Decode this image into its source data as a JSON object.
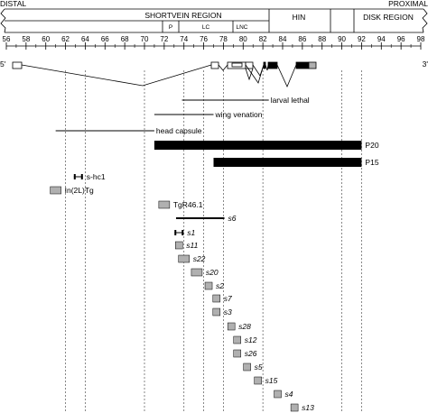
{
  "header": {
    "left_label": "DISTAL",
    "right_label": "PROXIMAL"
  },
  "regions": [
    {
      "id": "shortvein",
      "label": "SHORTVEIN REGION"
    },
    {
      "id": "hin",
      "label": "HIN"
    },
    {
      "id": "disk",
      "label": "DISK REGION"
    }
  ],
  "subregions": [
    {
      "id": "p",
      "label": "P"
    },
    {
      "id": "lc",
      "label": "LC"
    },
    {
      "id": "lnc",
      "label": "LNC"
    }
  ],
  "scale": {
    "min": 56,
    "max": 98,
    "labels": [
      "56",
      "58",
      "60",
      "62",
      "64",
      "66",
      "68",
      "70",
      "72",
      "74",
      "76",
      "78",
      "80",
      "82",
      "84",
      "86",
      "88",
      "90",
      "92",
      "94",
      "96",
      "98"
    ]
  },
  "strand": {
    "five_prime": "5'",
    "three_prime": "3'"
  },
  "phenotypes": [
    {
      "id": "larval-lethal",
      "label": "larval lethal",
      "start": 73.8,
      "end": 82.6
    },
    {
      "id": "wing-venation",
      "label": "wing venation",
      "start": 71.0,
      "end": 77.0
    },
    {
      "id": "head-capsule",
      "label": "head capsule",
      "start": 61.0,
      "end": 71.0
    }
  ],
  "deletions": [
    {
      "id": "p20",
      "label": "P20",
      "start": 71.0,
      "end": 92.0
    },
    {
      "id": "p15",
      "label": "P15",
      "start": 77.0,
      "end": 92.0
    }
  ],
  "insertions": [
    {
      "id": "s-hc1",
      "label": "s-hc1",
      "style": "bracket",
      "position": 63.3,
      "italic": false
    },
    {
      "id": "in2ltg",
      "label": "In(2L)Tg",
      "style": "box",
      "position": 61.0,
      "italic": false
    },
    {
      "id": "tgr46-1",
      "label": "TgR46.1",
      "style": "box",
      "position": 72.0,
      "italic": false
    },
    {
      "id": "s6",
      "label": "s6",
      "style": "line",
      "position": 74.8,
      "italic": true
    },
    {
      "id": "s1",
      "label": "s1",
      "style": "bracket",
      "position": 73.5,
      "italic": true
    },
    {
      "id": "s11",
      "label": "s11",
      "style": "box",
      "position": 73.5,
      "italic": true
    },
    {
      "id": "s22",
      "label": "s22",
      "style": "box",
      "position": 74.0,
      "italic": true
    },
    {
      "id": "s20",
      "label": "s20",
      "style": "box",
      "position": 75.3,
      "italic": true
    },
    {
      "id": "s2",
      "label": "s2",
      "style": "box",
      "position": 76.5,
      "italic": true
    },
    {
      "id": "s7",
      "label": "s7",
      "style": "box",
      "position": 77.3,
      "italic": true
    },
    {
      "id": "s3",
      "label": "s3",
      "style": "box",
      "position": 77.3,
      "italic": true
    },
    {
      "id": "s28",
      "label": "s28",
      "style": "box",
      "position": 78.8,
      "italic": true
    },
    {
      "id": "s12",
      "label": "s12",
      "style": "box",
      "position": 79.4,
      "italic": true
    },
    {
      "id": "s26",
      "label": "s26",
      "style": "box",
      "position": 79.4,
      "italic": true
    },
    {
      "id": "s5",
      "label": "s5",
      "style": "box",
      "position": 80.4,
      "italic": true
    },
    {
      "id": "s15",
      "label": "s15",
      "style": "box",
      "position": 81.5,
      "italic": true
    },
    {
      "id": "s4",
      "label": "s4",
      "style": "box",
      "position": 83.5,
      "italic": true
    },
    {
      "id": "s13",
      "label": "s13",
      "style": "box",
      "position": 85.2,
      "italic": true
    }
  ],
  "colors": {
    "line": "#000000",
    "gray_box": "#b0b0b0",
    "grid": "#555555"
  }
}
